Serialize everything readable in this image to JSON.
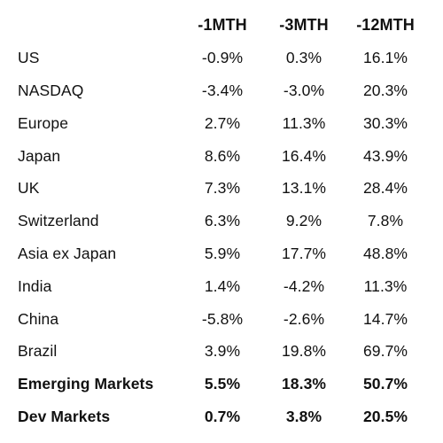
{
  "table": {
    "headers": [
      "-1MTH",
      "-3MTH",
      "-12MTH"
    ],
    "rows": [
      {
        "name": "US",
        "m1": "-0.9%",
        "m3": "0.3%",
        "m12": "16.1%"
      },
      {
        "name": "NASDAQ",
        "m1": "-3.4%",
        "m3": "-3.0%",
        "m12": "20.3%"
      },
      {
        "name": "Europe",
        "m1": "2.7%",
        "m3": "11.3%",
        "m12": "30.3%"
      },
      {
        "name": "Japan",
        "m1": "8.6%",
        "m3": "16.4%",
        "m12": "43.9%"
      },
      {
        "name": "UK",
        "m1": "7.3%",
        "m3": "13.1%",
        "m12": "28.4%"
      },
      {
        "name": "Switzerland",
        "m1": "6.3%",
        "m3": "9.2%",
        "m12": "7.8%"
      },
      {
        "name": "Asia ex Japan",
        "m1": "5.9%",
        "m3": "17.7%",
        "m12": "48.8%"
      },
      {
        "name": "India",
        "m1": "1.4%",
        "m3": "-4.2%",
        "m12": "11.3%"
      },
      {
        "name": "China",
        "m1": "-5.8%",
        "m3": "-2.6%",
        "m12": "14.7%"
      },
      {
        "name": "Brazil",
        "m1": "3.9%",
        "m3": "19.8%",
        "m12": "69.7%"
      },
      {
        "name": "Emerging Markets",
        "m1": "5.5%",
        "m3": "18.3%",
        "m12": "50.7%"
      },
      {
        "name": "Dev Markets",
        "m1": "0.7%",
        "m3": "3.8%",
        "m12": "20.5%"
      }
    ]
  }
}
